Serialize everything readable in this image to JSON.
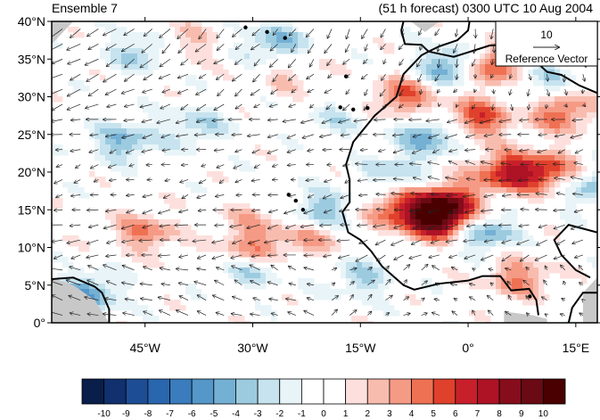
{
  "header": {
    "left_title": "Ensemble 7",
    "right_title": "(51 h forecast) 0300 UTC 10 Aug 2004"
  },
  "map": {
    "lon_range": [
      -58,
      18
    ],
    "lat_range": [
      0,
      40
    ],
    "lat_ticks": [
      {
        "value": 40,
        "label": "40°N"
      },
      {
        "value": 35,
        "label": "35°N"
      },
      {
        "value": 30,
        "label": "30°N"
      },
      {
        "value": 25,
        "label": "25°N"
      },
      {
        "value": 20,
        "label": "20°N"
      },
      {
        "value": 15,
        "label": "15°N"
      },
      {
        "value": 10,
        "label": "10°N"
      },
      {
        "value": 5,
        "label": "5°N"
      },
      {
        "value": 0,
        "label": "0°"
      }
    ],
    "lon_ticks": [
      {
        "value": -45,
        "label": "45°W"
      },
      {
        "value": -30,
        "label": "30°W"
      },
      {
        "value": -15,
        "label": "15°W"
      },
      {
        "value": 0,
        "label": "0°"
      },
      {
        "value": 15,
        "label": "15°E"
      }
    ],
    "reference_vector": {
      "magnitude": "10",
      "label": "Reference Vector"
    }
  },
  "colorbar": {
    "labels": [
      "-10",
      "-9",
      "-8",
      "-7",
      "-6",
      "-5",
      "-4",
      "-3",
      "-2",
      "-1",
      "0",
      "1",
      "2",
      "3",
      "4",
      "5",
      "6",
      "7",
      "8",
      "9",
      "10"
    ],
    "colors": [
      "#0a1e4a",
      "#12306e",
      "#1d4d94",
      "#2a66ae",
      "#3a7cbc",
      "#5497c8",
      "#74b0d4",
      "#9ccbe0",
      "#c6e3ef",
      "#e8f4f8",
      "#ffffff",
      "#ffffff",
      "#fde0dd",
      "#f8bcae",
      "#f59a85",
      "#ef7154",
      "#e0412c",
      "#c8202b",
      "#ad1325",
      "#860d1c",
      "#6a0a14",
      "#4a0000"
    ]
  },
  "chart_data": {
    "type": "heatmap",
    "field": "shaded anomaly with wind vectors",
    "x_range_deg_lon": [
      -58,
      18
    ],
    "y_range_deg_lat": [
      0,
      40
    ],
    "levels": [
      -10,
      -9,
      -8,
      -7,
      -6,
      -5,
      -4,
      -3,
      -2,
      -1,
      0,
      1,
      2,
      3,
      4,
      5,
      6,
      7,
      8,
      9,
      10
    ],
    "blobs": [
      {
        "lon": -4,
        "lat": 13.5,
        "value": 9
      },
      {
        "lon": -3,
        "lat": 16,
        "value": 7
      },
      {
        "lon": -10,
        "lat": 15,
        "value": 5
      },
      {
        "lon": 1,
        "lat": 27,
        "value": 6
      },
      {
        "lon": -9,
        "lat": 30,
        "value": 5
      },
      {
        "lon": 3,
        "lat": 34,
        "value": 7
      },
      {
        "lon": 11,
        "lat": 20,
        "value": 6
      },
      {
        "lon": 5,
        "lat": 20,
        "value": 6
      },
      {
        "lon": 13,
        "lat": 28,
        "value": 5
      },
      {
        "lon": 7,
        "lat": 6,
        "value": 4
      },
      {
        "lon": -30,
        "lat": 10,
        "value": 4
      },
      {
        "lon": -45,
        "lat": 12,
        "value": 4
      },
      {
        "lon": -22,
        "lat": 11,
        "value": 3
      },
      {
        "lon": -40,
        "lat": 37,
        "value": 3
      },
      {
        "lon": -25,
        "lat": 33,
        "value": 2
      },
      {
        "lon": -30,
        "lat": 14,
        "value": 2
      },
      {
        "lon": -5,
        "lat": 25,
        "value": -5
      },
      {
        "lon": -2,
        "lat": 34,
        "value": -6
      },
      {
        "lon": 2,
        "lat": 12,
        "value": -5
      },
      {
        "lon": -45,
        "lat": 36,
        "value": -4
      },
      {
        "lon": -48,
        "lat": 24,
        "value": -4
      },
      {
        "lon": -27,
        "lat": 37,
        "value": -4
      },
      {
        "lon": -20,
        "lat": 15,
        "value": -4
      },
      {
        "lon": -38,
        "lat": 26,
        "value": -3
      },
      {
        "lon": -30,
        "lat": 7,
        "value": -3
      },
      {
        "lon": -53,
        "lat": 4,
        "value": -5
      },
      {
        "lon": -15,
        "lat": 6,
        "value": -3
      },
      {
        "lon": 10,
        "lat": 32,
        "value": -3
      },
      {
        "lon": 17,
        "lat": 18,
        "value": -4
      },
      {
        "lon": -18,
        "lat": 27,
        "value": -2
      },
      {
        "lon": -10,
        "lat": 20,
        "value": -3
      }
    ]
  }
}
